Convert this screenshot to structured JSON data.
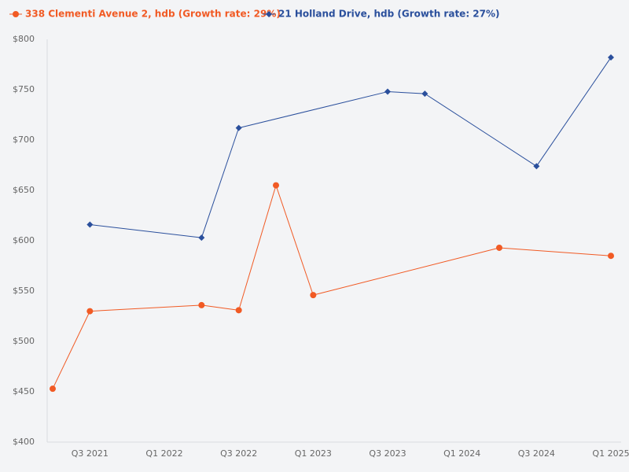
{
  "chart_data": {
    "type": "line",
    "categories": [
      null,
      "Q3 2021",
      null,
      "Q1 2022",
      null,
      "Q3 2022",
      null,
      "Q1 2023",
      null,
      "Q3 2023",
      null,
      "Q1 2024",
      null,
      "Q3 2024",
      null,
      "Q1 2025"
    ],
    "series": [
      {
        "name": "338 Clementi Avenue 2, hdb (Growth rate: 29%)",
        "color": "#f15a24",
        "marker": "circle",
        "values": [
          453,
          530,
          null,
          null,
          536,
          531,
          655,
          546,
          null,
          null,
          null,
          null,
          593,
          null,
          null,
          585
        ]
      },
      {
        "name": "21 Holland Drive, hdb (Growth rate: 27%)",
        "color": "#2a4f9c",
        "marker": "diamond",
        "values": [
          null,
          616,
          null,
          null,
          603,
          712,
          null,
          null,
          null,
          748,
          746,
          null,
          null,
          674,
          null,
          782
        ]
      }
    ],
    "span_gaps": true,
    "ylim": [
      400,
      800
    ],
    "yticks": [
      {
        "value": 400,
        "label": "$400"
      },
      {
        "value": 450,
        "label": "$450"
      },
      {
        "value": 500,
        "label": "$500"
      },
      {
        "value": 550,
        "label": "$550"
      },
      {
        "value": 600,
        "label": "$600"
      },
      {
        "value": 650,
        "label": "$650"
      },
      {
        "value": 700,
        "label": "$700"
      },
      {
        "value": 750,
        "label": "$750"
      },
      {
        "value": 800,
        "label": "$800"
      }
    ],
    "legend": "top-left"
  }
}
